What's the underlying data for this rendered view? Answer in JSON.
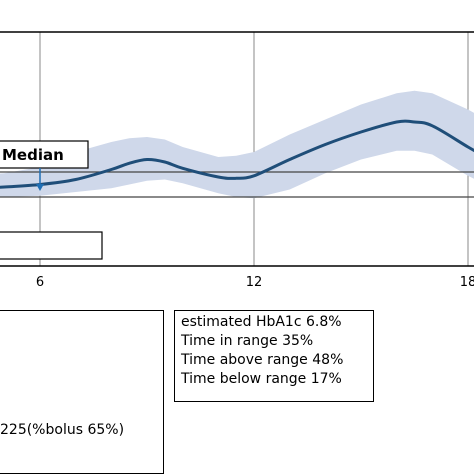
{
  "chart_data": {
    "type": "line",
    "title": "",
    "xlabel": "",
    "ylabel": "",
    "xlim": [
      0.3,
      18.5
    ],
    "x_ticks": [
      6,
      12,
      18
    ],
    "grid": true,
    "annotation": "Median",
    "colors": {
      "median": "#1f4e79",
      "band": "#cfd8ea",
      "grid": "#888888"
    },
    "series": [
      {
        "x": [
          0.3,
          1,
          2,
          3,
          4,
          5,
          6,
          7,
          8,
          8.5,
          9,
          9.5,
          10,
          11,
          11.5,
          12,
          13,
          14,
          15,
          16,
          16.5,
          17,
          18,
          18.5
        ],
        "median": [
          200,
          201,
          203,
          204,
          206,
          208,
          210,
          214,
          222,
          227,
          230,
          228,
          223,
          216,
          215,
          217,
          230,
          242,
          252,
          260,
          260,
          257,
          240,
          232
        ],
        "band_upper": [
          207,
          209,
          212,
          216,
          218,
          219,
          224,
          236,
          244,
          247,
          248,
          246,
          240,
          232,
          233,
          236,
          250,
          262,
          274,
          283,
          285,
          283,
          270,
          262
        ],
        "band_lower": [
          194,
          195,
          196,
          197,
          198,
          200,
          201,
          204,
          207,
          210,
          213,
          214,
          211,
          203,
          200,
          199,
          206,
          219,
          230,
          237,
          237,
          234,
          217,
          210
        ]
      }
    ],
    "reference_lines": [
      220,
      200
    ]
  },
  "stats_box": {
    "lines": [
      "estimated HbA1c 6.8%",
      "Time in range 35%",
      "Time above range 48%",
      "Time below range 17%"
    ]
  },
  "left_box": {
    "text": "225(%bolus 65%)"
  }
}
